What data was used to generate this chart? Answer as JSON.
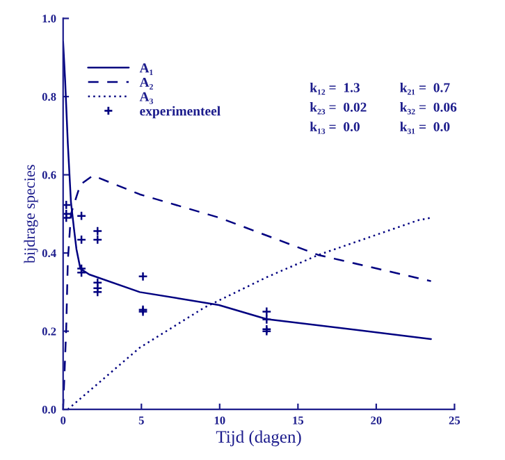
{
  "chart_data": {
    "type": "line",
    "xlabel": "Tijd (dagen)",
    "ylabel": "bijdrage species",
    "xlim": [
      0,
      25
    ],
    "ylim": [
      0,
      1.0
    ],
    "xticks": [
      0,
      5,
      10,
      15,
      20,
      25
    ],
    "yticks": [
      {
        "value": 0,
        "label": "0.0"
      },
      {
        "value": 0.2,
        "label": "0.2"
      },
      {
        "value": 0.4,
        "label": "0.4"
      },
      {
        "value": 0.6,
        "label": "0.6"
      },
      {
        "value": 0.8,
        "label": "0.8"
      },
      {
        "value": 1.0,
        "label": "1.0"
      }
    ],
    "grid": false,
    "legend": "top left",
    "series": [
      {
        "name": "A₁",
        "color": "#000080",
        "line_style": "solid",
        "x": [
          0,
          0.13,
          0.3,
          0.5,
          0.7,
          0.85,
          1.1,
          1.67,
          4.9,
          9.95,
          13,
          23.5
        ],
        "values": [
          0.94,
          0.84,
          0.68,
          0.53,
          0.46,
          0.41,
          0.36,
          0.345,
          0.3,
          0.267,
          0.231,
          0.18
        ]
      },
      {
        "name": "A₂",
        "color": "#000080",
        "line_style": "dashed",
        "x": [
          0,
          0.2,
          0.3,
          0.5,
          1.1,
          1.9,
          4.9,
          10,
          16.3,
          23.5
        ],
        "values": [
          0,
          0.21,
          0.38,
          0.5,
          0.575,
          0.598,
          0.55,
          0.49,
          0.395,
          0.328
        ]
      },
      {
        "name": "A₃",
        "color": "#000080",
        "line_style": "dotted",
        "x": [
          0.3,
          4.9,
          9,
          13,
          16.3,
          22.7,
          23.5
        ],
        "values": [
          0,
          0.158,
          0.26,
          0.338,
          0.395,
          0.484,
          0.49
        ]
      },
      {
        "name": "experimenteel",
        "type": "scatter",
        "marker": "cross",
        "color": "#000080",
        "x": [
          0.2,
          0.2,
          0.2,
          1.17,
          1.17,
          1.17,
          1.17,
          2.2,
          2.2,
          2.2,
          2.2,
          2.2,
          5.1,
          5.1,
          5.1,
          13,
          13,
          13,
          13
        ],
        "values": [
          0.523,
          0.5,
          0.49,
          0.495,
          0.434,
          0.36,
          0.35,
          0.456,
          0.434,
          0.324,
          0.31,
          0.3,
          0.34,
          0.255,
          0.25,
          0.25,
          0.23,
          0.205,
          0.2
        ]
      }
    ],
    "annotations": [
      "k₁₂ =  1.3",
      "k₂₁ =  0.7",
      "k₂₃ =  0.02",
      "k₃₂ =  0.06",
      "k₁₃ =  0.0",
      "k₃₁ =  0.0"
    ]
  }
}
